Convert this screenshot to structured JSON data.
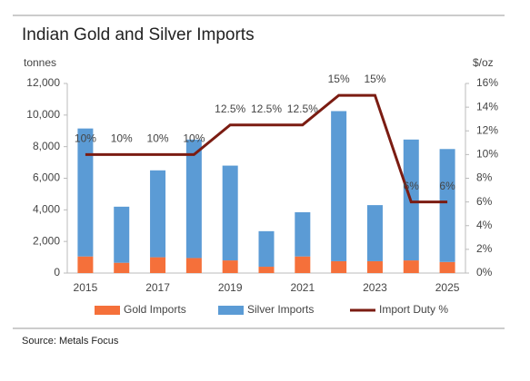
{
  "chart_data": {
    "type": "bar",
    "stacked": true,
    "title": "Indian Gold and Silver Imports",
    "y_label": "tonnes",
    "y2_label": "$/oz",
    "source": "Source: Metals Focus",
    "categories": [
      "2015",
      null,
      "2017",
      null,
      "2019",
      null,
      "2021",
      null,
      "2023",
      null,
      "2025"
    ],
    "series": [
      {
        "name": "Gold Imports",
        "type": "bar",
        "color": "#f5703a",
        "values": [
          1050,
          650,
          1000,
          950,
          800,
          400,
          1050,
          750,
          750,
          800,
          700
        ]
      },
      {
        "name": "Silver Imports",
        "type": "bar",
        "color": "#5b9bd5",
        "values": [
          8100,
          3550,
          5500,
          7500,
          6000,
          2250,
          2800,
          9500,
          3550,
          7650,
          7150
        ]
      },
      {
        "name": "Import Duty %",
        "type": "line",
        "axis": "y2",
        "color": "#7b1c12",
        "values": [
          10,
          10,
          10,
          10,
          12.5,
          12.5,
          12.5,
          15,
          15,
          6,
          6
        ],
        "value_labels": [
          "10%",
          "10%",
          "10%",
          "10%",
          "12.5%",
          "12.5%",
          "12.5%",
          "15%",
          "15%",
          "6%",
          "6%"
        ]
      }
    ],
    "ylim": [
      0,
      12000
    ],
    "yticks": [
      0,
      {
        "value": 2000,
        "label": "2,000"
      },
      {
        "value": 4000,
        "label": "4,000"
      },
      {
        "value": 6000,
        "label": "6,000"
      },
      {
        "value": 8000,
        "label": "8,000"
      },
      {
        "value": 10000,
        "label": "10,000"
      },
      {
        "value": 12000,
        "label": "12,000"
      }
    ],
    "y2lim": [
      0,
      16
    ],
    "y2ticks": [
      {
        "value": 0,
        "label": "0%"
      },
      {
        "value": 2,
        "label": "2%"
      },
      {
        "value": 4,
        "label": "4%"
      },
      {
        "value": 6,
        "label": "6%"
      },
      {
        "value": 8,
        "label": "8%"
      },
      {
        "value": 10,
        "label": "10%"
      },
      {
        "value": 12,
        "label": "12%"
      },
      {
        "value": 14,
        "label": "14%"
      },
      {
        "value": 16,
        "label": "16%"
      }
    ],
    "grid": false,
    "legend": "bottom"
  }
}
